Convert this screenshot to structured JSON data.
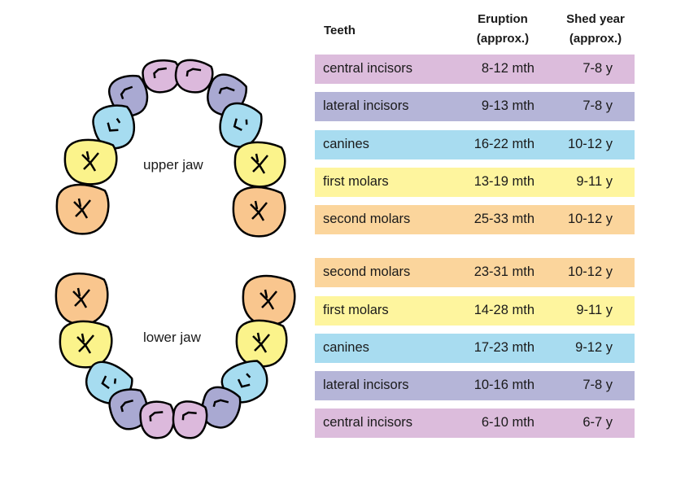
{
  "headers": {
    "teeth": "Teeth",
    "eruption": "Eruption",
    "eruption_sub": "(approx.)",
    "shed": "Shed year",
    "shed_sub": "(approx.)"
  },
  "colors": {
    "central_incisors": "#dcbcdc",
    "lateral_incisors": "#b5b5d8",
    "canines": "#a8dcf0",
    "first_molars": "#fef59e",
    "second_molars": "#fbd59c"
  },
  "upper_jaw": {
    "label": "upper jaw",
    "rows": [
      {
        "tooth": "central incisors",
        "eruption": "8-12 mth",
        "shed": "7-8 y",
        "color": "#dcbcdc"
      },
      {
        "tooth": "lateral incisors",
        "eruption": "9-13 mth",
        "shed": "7-8 y",
        "color": "#b5b5d8"
      },
      {
        "tooth": "canines",
        "eruption": "16-22 mth",
        "shed": "10-12 y",
        "color": "#a8dcf0"
      },
      {
        "tooth": "first molars",
        "eruption": "13-19 mth",
        "shed": "9-11 y",
        "color": "#fef59e"
      },
      {
        "tooth": "second molars",
        "eruption": "25-33 mth",
        "shed": "10-12 y",
        "color": "#fbd59c"
      }
    ]
  },
  "lower_jaw": {
    "label": "lower jaw",
    "rows": [
      {
        "tooth": "second molars",
        "eruption": "23-31 mth",
        "shed": "10-12 y",
        "color": "#fbd59c"
      },
      {
        "tooth": "first molars",
        "eruption": "14-28 mth",
        "shed": "9-11 y",
        "color": "#fef59e"
      },
      {
        "tooth": "canines",
        "eruption": "17-23 mth",
        "shed": "9-12 y",
        "color": "#a8dcf0"
      },
      {
        "tooth": "lateral incisors",
        "eruption": "10-16 mth",
        "shed": "7-8 y",
        "color": "#b5b5d8"
      },
      {
        "tooth": "central incisors",
        "eruption": "6-10 mth",
        "shed": "6-7 y",
        "color": "#dcbcdc"
      }
    ]
  }
}
